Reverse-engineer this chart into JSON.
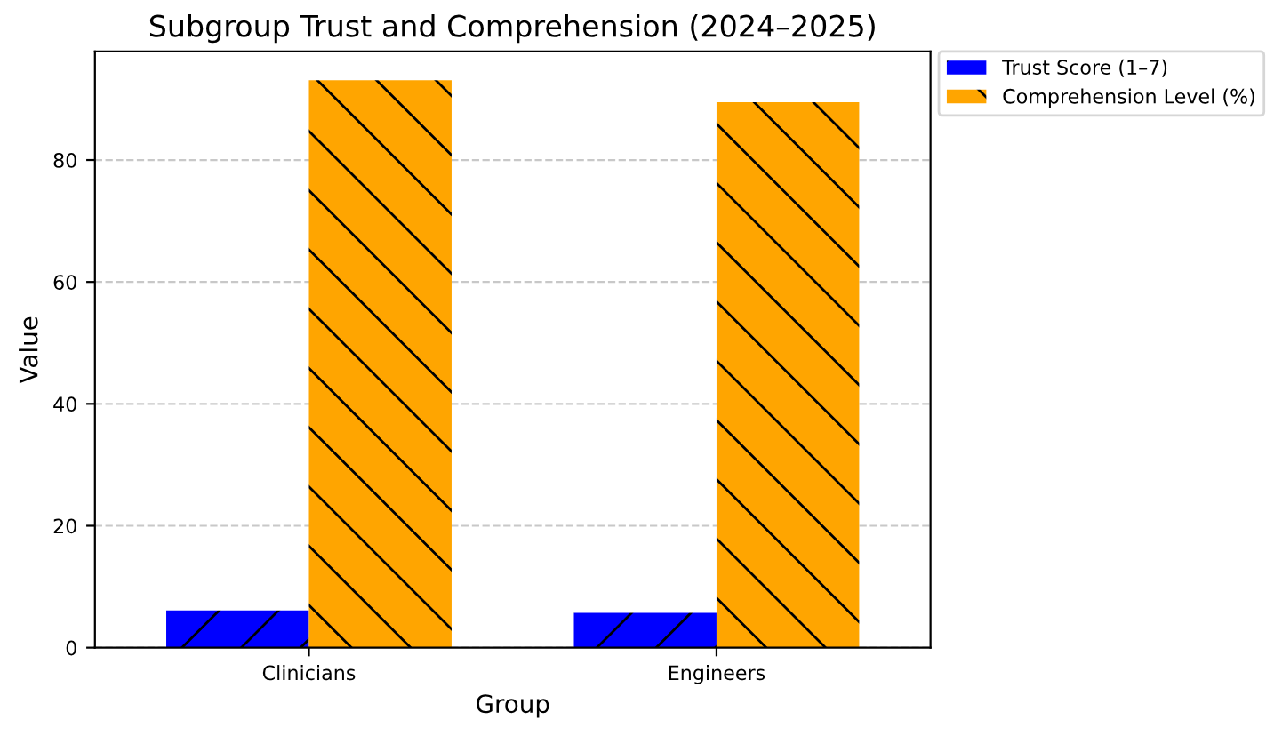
{
  "chart_data": {
    "type": "bar",
    "title": "Subgroup Trust and Comprehension (2024–2025)",
    "xlabel": "Group",
    "ylabel": "Value",
    "categories": [
      "Clinicians",
      "Engineers"
    ],
    "series": [
      {
        "name": "Trust Score (1–7)",
        "color": "#0000ff",
        "values": [
          6.1,
          5.7
        ]
      },
      {
        "name": "Comprehension Level (%)",
        "color": "#ffa500",
        "values": [
          93.1,
          89.5
        ]
      }
    ],
    "ylim": [
      0,
      97.8
    ],
    "yticks": [
      0,
      20,
      40,
      60,
      80
    ],
    "grid": "y",
    "legend": "top right"
  }
}
